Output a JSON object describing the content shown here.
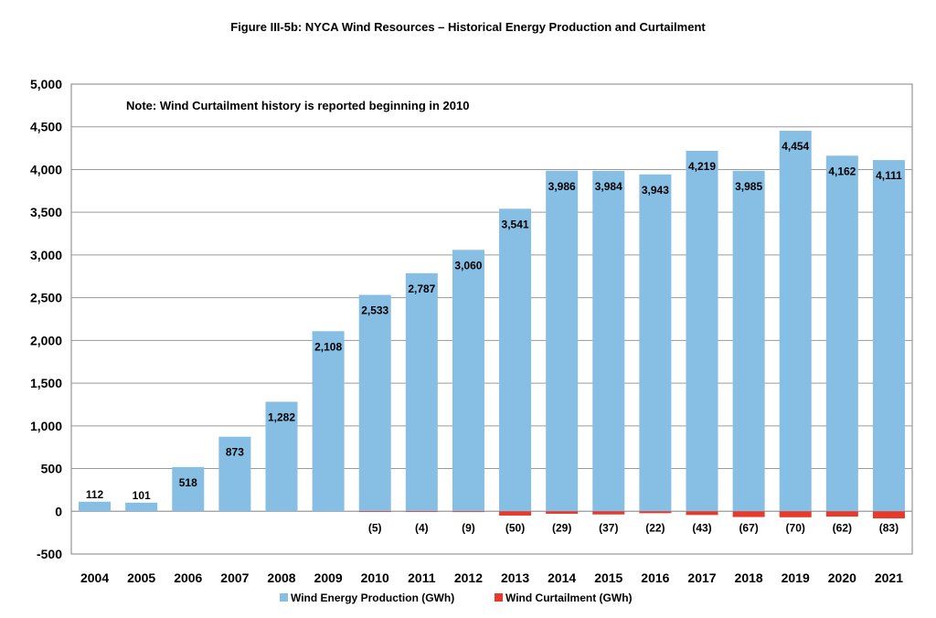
{
  "chart_data": {
    "type": "bar",
    "title": "Figure III-5b: NYCA Wind Resources – Historical Energy Production and Curtailment",
    "note": "Note: Wind Curtailment history is reported beginning in 2010",
    "categories": [
      "2004",
      "2005",
      "2006",
      "2007",
      "2008",
      "2009",
      "2010",
      "2011",
      "2012",
      "2013",
      "2014",
      "2015",
      "2016",
      "2017",
      "2018",
      "2019",
      "2020",
      "2021"
    ],
    "series": [
      {
        "name": "Wind Energy Production (GWh)",
        "color": "#87BEE3",
        "values": [
          112,
          101,
          518,
          873,
          1282,
          2108,
          2533,
          2787,
          3060,
          3541,
          3986,
          3984,
          3943,
          4219,
          3985,
          4454,
          4162,
          4111
        ],
        "labels": [
          "112",
          "101",
          "518",
          "873",
          "1,282",
          "2,108",
          "2,533",
          "2,787",
          "3,060",
          "3,541",
          "3,986",
          "3,984",
          "3,943",
          "4,219",
          "3,985",
          "4,454",
          "4,162",
          "4,111"
        ]
      },
      {
        "name": "Wind Curtailment (GWh)",
        "color": "#E8392A",
        "values": [
          null,
          null,
          null,
          null,
          null,
          null,
          -5,
          -4,
          -9,
          -50,
          -29,
          -37,
          -22,
          -43,
          -67,
          -70,
          -62,
          -83
        ],
        "labels": [
          "",
          "",
          "",
          "",
          "",
          "",
          "(5)",
          "(4)",
          "(9)",
          "(50)",
          "(29)",
          "(37)",
          "(22)",
          "(43)",
          "(67)",
          "(70)",
          "(62)",
          "(83)"
        ]
      }
    ],
    "ylim": [
      -500,
      5000
    ],
    "yticks": [
      -500,
      0,
      500,
      1000,
      1500,
      2000,
      2500,
      3000,
      3500,
      4000,
      4500,
      5000
    ],
    "ytick_labels": [
      "-500",
      "0",
      "500",
      "1,000",
      "1,500",
      "2,000",
      "2,500",
      "3,000",
      "3,500",
      "4,000",
      "4,500",
      "5,000"
    ],
    "grid": true,
    "legend_position": "bottom",
    "xlabel": "",
    "ylabel": ""
  }
}
